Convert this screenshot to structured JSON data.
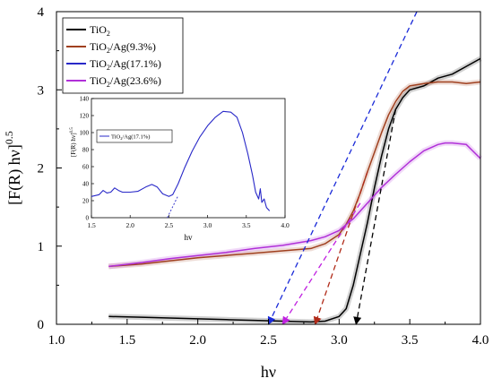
{
  "chart_data": [
    {
      "type": "line",
      "xlabel": "hν",
      "ylabel": "[F(R) hν]",
      "ylabel_sup": "0.5",
      "xlim": [
        1.0,
        4.0
      ],
      "ylim": [
        0,
        4
      ],
      "x_ticks": [
        1.0,
        1.5,
        2.0,
        2.5,
        3.0,
        3.5,
        4.0
      ],
      "x_tick_labels": [
        "1.0",
        "1.5",
        "2.0",
        "2.5",
        "3.0",
        "3.5",
        "4.0"
      ],
      "y_ticks": [
        0,
        1,
        2,
        3,
        4
      ],
      "y_tick_labels": [
        "0",
        "1",
        "2",
        "3",
        "4"
      ],
      "legend_position": "top-left",
      "series": [
        {
          "name": "TiO2",
          "legend_main": "TiO",
          "legend_sub": "2",
          "legend_tail": "",
          "color": "#000000",
          "points": [
            [
              1.37,
              0.1
            ],
            [
              1.6,
              0.09
            ],
            [
              1.8,
              0.08
            ],
            [
              2.0,
              0.07
            ],
            [
              2.2,
              0.06
            ],
            [
              2.4,
              0.05
            ],
            [
              2.6,
              0.04
            ],
            [
              2.8,
              0.03
            ],
            [
              2.9,
              0.04
            ],
            [
              3.0,
              0.1
            ],
            [
              3.05,
              0.2
            ],
            [
              3.1,
              0.5
            ],
            [
              3.15,
              0.9
            ],
            [
              3.2,
              1.3
            ],
            [
              3.25,
              1.75
            ],
            [
              3.3,
              2.15
            ],
            [
              3.35,
              2.5
            ],
            [
              3.4,
              2.75
            ],
            [
              3.45,
              2.9
            ],
            [
              3.5,
              3.0
            ],
            [
              3.6,
              3.05
            ],
            [
              3.7,
              3.15
            ],
            [
              3.8,
              3.2
            ],
            [
              3.9,
              3.3
            ],
            [
              4.0,
              3.4
            ]
          ]
        },
        {
          "name": "TiO2/Ag(9.3%)",
          "legend_main": "TiO",
          "legend_sub": "2",
          "legend_tail": "/Ag(9.3%)",
          "color": "#a0401f",
          "points": [
            [
              1.37,
              0.74
            ],
            [
              1.6,
              0.77
            ],
            [
              1.8,
              0.81
            ],
            [
              2.0,
              0.85
            ],
            [
              2.2,
              0.88
            ],
            [
              2.4,
              0.91
            ],
            [
              2.6,
              0.94
            ],
            [
              2.8,
              0.97
            ],
            [
              2.9,
              1.03
            ],
            [
              3.0,
              1.15
            ],
            [
              3.05,
              1.28
            ],
            [
              3.1,
              1.45
            ],
            [
              3.15,
              1.68
            ],
            [
              3.2,
              1.95
            ],
            [
              3.25,
              2.2
            ],
            [
              3.3,
              2.45
            ],
            [
              3.35,
              2.68
            ],
            [
              3.4,
              2.85
            ],
            [
              3.45,
              2.98
            ],
            [
              3.5,
              3.05
            ],
            [
              3.6,
              3.08
            ],
            [
              3.7,
              3.1
            ],
            [
              3.8,
              3.1
            ],
            [
              3.9,
              3.08
            ],
            [
              4.0,
              3.1
            ]
          ]
        },
        {
          "name": "TiO2/Ag(17.1%)",
          "legend_main": "TiO",
          "legend_sub": "2",
          "legend_tail": "/Ag(17.1%)",
          "color": "#2828c8",
          "points": []
        },
        {
          "name": "TiO2/Ag(23.6%)",
          "legend_main": "TiO",
          "legend_sub": "2",
          "legend_tail": "/Ag(23.6%)",
          "color": "#b030d8",
          "points": [
            [
              1.37,
              0.74
            ],
            [
              1.6,
              0.79
            ],
            [
              1.8,
              0.84
            ],
            [
              2.0,
              0.88
            ],
            [
              2.2,
              0.92
            ],
            [
              2.4,
              0.97
            ],
            [
              2.6,
              1.01
            ],
            [
              2.8,
              1.07
            ],
            [
              2.9,
              1.12
            ],
            [
              3.0,
              1.2
            ],
            [
              3.1,
              1.35
            ],
            [
              3.2,
              1.55
            ],
            [
              3.3,
              1.75
            ],
            [
              3.4,
              1.92
            ],
            [
              3.5,
              2.08
            ],
            [
              3.6,
              2.22
            ],
            [
              3.7,
              2.3
            ],
            [
              3.75,
              2.32
            ],
            [
              3.8,
              2.32
            ],
            [
              3.9,
              2.3
            ],
            [
              4.0,
              2.12
            ]
          ]
        }
      ],
      "tangent_lines": [
        {
          "series": "TiO2/Ag(17.1%)",
          "color": "#1a2ad8",
          "from": [
            2.5,
            0.0
          ],
          "to": [
            3.55,
            4.0
          ]
        },
        {
          "series": "TiO2/Ag(23.6%)",
          "color": "#c020e0",
          "from": [
            2.6,
            0.0
          ],
          "to": [
            3.15,
            1.55
          ]
        },
        {
          "series": "TiO2/Ag(9.3%)",
          "color": "#b02a18",
          "from": [
            2.83,
            0.0
          ],
          "to": [
            3.2,
            1.95
          ]
        },
        {
          "series": "TiO2",
          "color": "#000000",
          "from": [
            3.12,
            0.0
          ],
          "to": [
            3.4,
            2.75
          ]
        }
      ]
    },
    {
      "type": "line",
      "role": "inset",
      "xlabel": "hv",
      "ylabel": "[F(R) hv]",
      "ylabel_sup": "0.5",
      "xlim": [
        1.5,
        4.0
      ],
      "ylim": [
        0,
        140
      ],
      "x_ticks": [
        1.5,
        2.0,
        2.5,
        3.0,
        3.5,
        4.0
      ],
      "x_tick_labels": [
        "1.5",
        "2.0",
        "2.5",
        "3.0",
        "3.5",
        "4.0"
      ],
      "y_ticks": [
        0,
        20,
        40,
        60,
        80,
        100,
        120,
        140
      ],
      "y_tick_labels": [
        "0",
        "20",
        "40",
        "60",
        "80",
        "100",
        "120",
        "140"
      ],
      "legend_position": "top-left",
      "series": [
        {
          "name": "TiO2/Ag(17.1%)",
          "legend_main": "TiO",
          "legend_sub": "2",
          "legend_tail": "/Ag(17.1%)",
          "color": "#2828c8",
          "points": [
            [
              1.5,
              25
            ],
            [
              1.6,
              27
            ],
            [
              1.65,
              32
            ],
            [
              1.7,
              29
            ],
            [
              1.75,
              30
            ],
            [
              1.8,
              35
            ],
            [
              1.85,
              32
            ],
            [
              1.9,
              30
            ],
            [
              2.0,
              30
            ],
            [
              2.1,
              31
            ],
            [
              2.2,
              36
            ],
            [
              2.28,
              39
            ],
            [
              2.35,
              36
            ],
            [
              2.42,
              28
            ],
            [
              2.5,
              25
            ],
            [
              2.55,
              27
            ],
            [
              2.62,
              40
            ],
            [
              2.7,
              58
            ],
            [
              2.8,
              78
            ],
            [
              2.9,
              95
            ],
            [
              3.0,
              108
            ],
            [
              3.1,
              118
            ],
            [
              3.2,
              125
            ],
            [
              3.3,
              124
            ],
            [
              3.38,
              118
            ],
            [
              3.45,
              100
            ],
            [
              3.52,
              75
            ],
            [
              3.58,
              50
            ],
            [
              3.62,
              30
            ],
            [
              3.66,
              22
            ],
            [
              3.68,
              34
            ],
            [
              3.7,
              18
            ],
            [
              3.73,
              22
            ],
            [
              3.76,
              12
            ],
            [
              3.8,
              8
            ]
          ]
        }
      ],
      "tangent_lines": [
        {
          "series": "TiO2/Ag(17.1%)",
          "color": "#2828c8",
          "from": [
            2.48,
            0.0
          ],
          "to": [
            2.62,
            26.0
          ]
        }
      ]
    }
  ]
}
